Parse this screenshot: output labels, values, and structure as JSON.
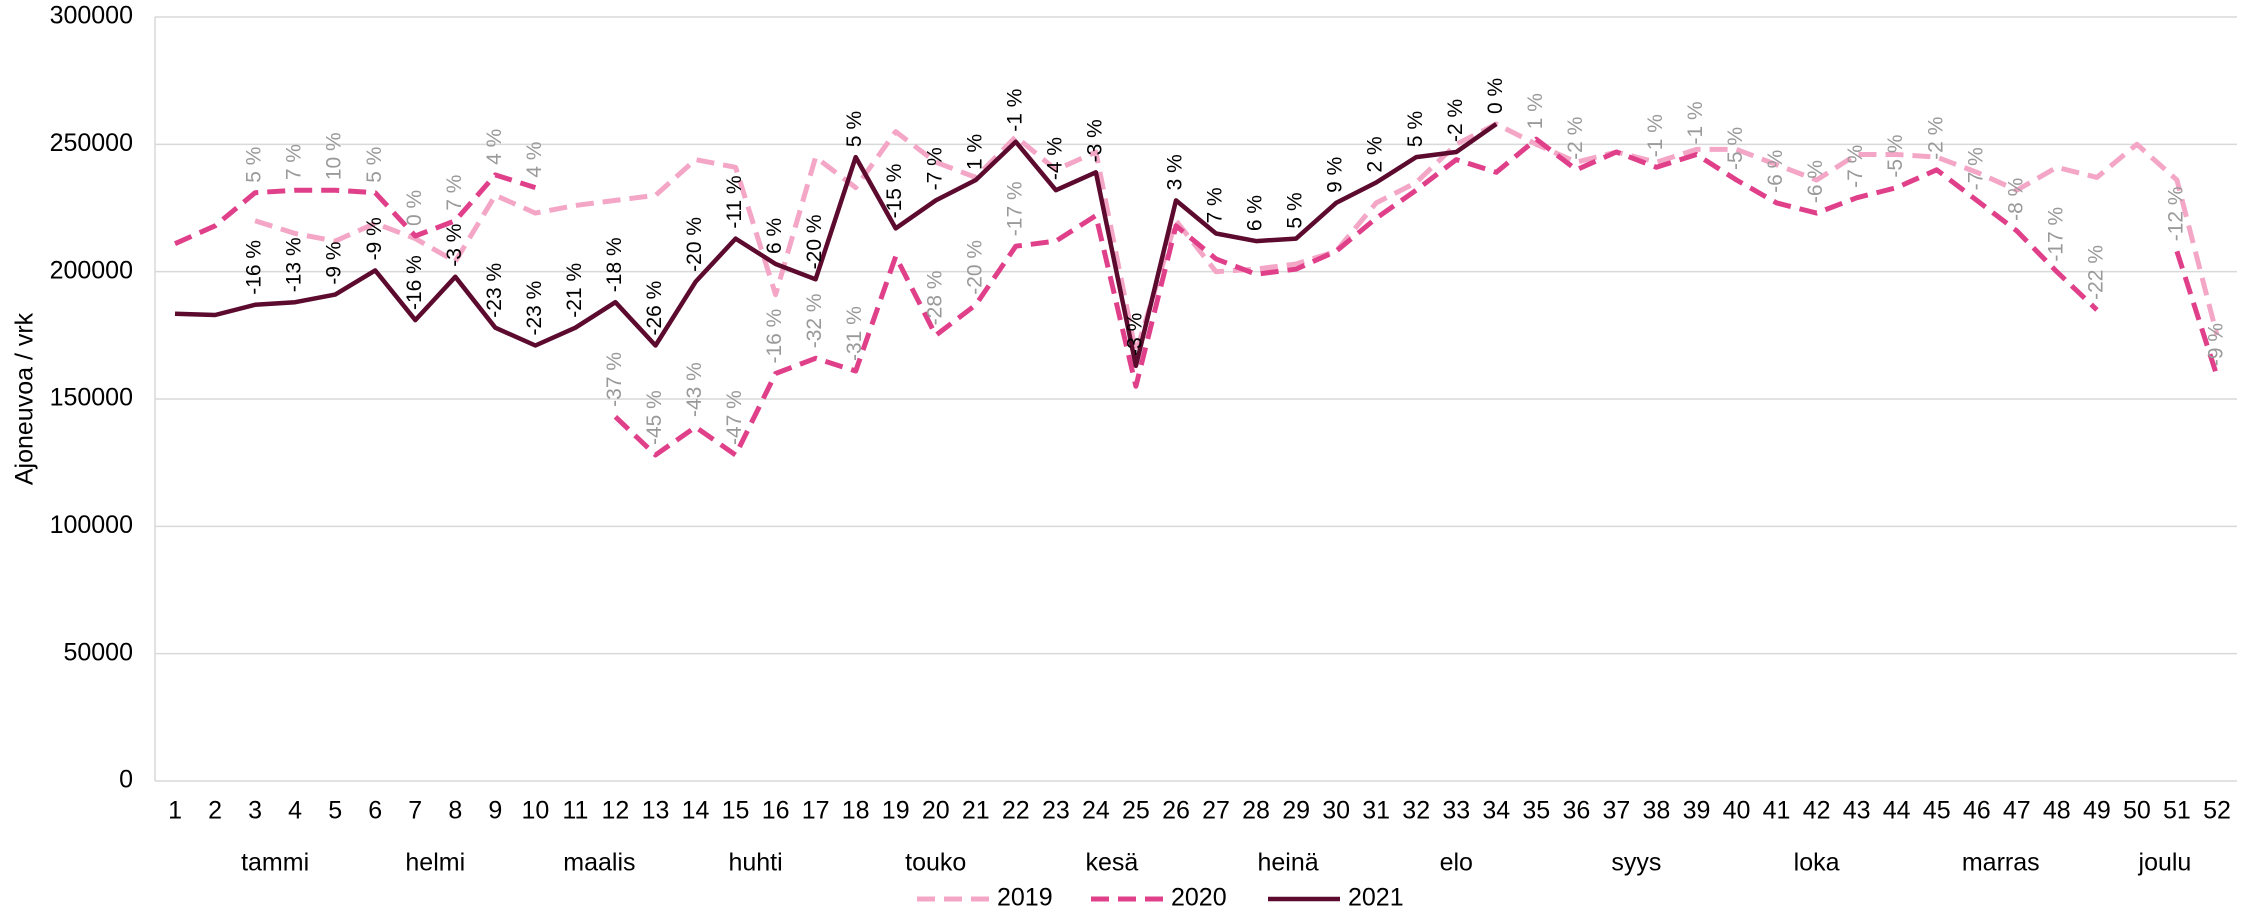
{
  "chart_data": {
    "type": "line",
    "ylabel": "Ajoneuvoa / vrk",
    "categories": [
      "1",
      "2",
      "3",
      "4",
      "5",
      "6",
      "7",
      "8",
      "9",
      "10",
      "11",
      "12",
      "13",
      "14",
      "15",
      "16",
      "17",
      "18",
      "19",
      "20",
      "21",
      "22",
      "23",
      "24",
      "25",
      "26",
      "27",
      "28",
      "29",
      "30",
      "31",
      "32",
      "33",
      "34",
      "35",
      "36",
      "37",
      "38",
      "39",
      "40",
      "41",
      "42",
      "43",
      "44",
      "45",
      "46",
      "47",
      "48",
      "49",
      "50",
      "51",
      "52"
    ],
    "months": [
      "tammi",
      "helmi",
      "maalis",
      "huhti",
      "touko",
      "kesä",
      "heinä",
      "elo",
      "syys",
      "loka",
      "marras",
      "joulu"
    ],
    "ylim": [
      0,
      300000
    ],
    "yticks": [
      0,
      50000,
      100000,
      150000,
      200000,
      250000,
      300000
    ],
    "grid": true,
    "legend": "bottom",
    "series": [
      {
        "name": "2019",
        "color": "#f4a6c6",
        "dash": "dashed",
        "values": [
          null,
          null,
          220000,
          215000,
          212000,
          219000,
          213000,
          204000,
          230000,
          223000,
          226000,
          228000,
          230000,
          244000,
          241000,
          191000,
          245000,
          233000,
          255000,
          243000,
          237000,
          253000,
          240000,
          247000,
          168000,
          220000,
          200000,
          201000,
          203000,
          208000,
          227000,
          235000,
          250000,
          258000,
          250000,
          243000,
          247000,
          243000,
          248000,
          248000,
          242000,
          236000,
          246000,
          246000,
          245000,
          239000,
          232000,
          241000,
          237000,
          250000,
          236000,
          175000
        ]
      },
      {
        "name": "2020",
        "color": "#e0408a",
        "dash": "dashed",
        "label_color": "#9a9a9a",
        "values": [
          211000,
          218000,
          231000,
          232000,
          232000,
          231000,
          214000,
          220000,
          238000,
          233000,
          null,
          143000,
          128000,
          139000,
          128000,
          160000,
          166000,
          161000,
          206000,
          175000,
          187000,
          210000,
          212000,
          222000,
          155000,
          218000,
          205000,
          199000,
          201000,
          208000,
          221000,
          232000,
          244000,
          239000,
          252000,
          240000,
          247000,
          241000,
          246000,
          236000,
          227000,
          223000,
          229000,
          233000,
          240000,
          228000,
          216000,
          200000,
          185000,
          null,
          208000,
          159000
        ],
        "change_labels": [
          null,
          null,
          "5 %",
          "7 %",
          "10 %",
          "5 %",
          "0 %",
          "7 %",
          "4 %",
          "4 %",
          null,
          "-37 %",
          "-45 %",
          "-43 %",
          "-47 %",
          "-16 %",
          "-32 %",
          "-31 %",
          null,
          "-28 %",
          "-20 %",
          "-17 %",
          null,
          null,
          null,
          null,
          null,
          null,
          null,
          null,
          null,
          null,
          null,
          null,
          "1 %",
          "-2 %",
          null,
          "-1 %",
          "-1 %",
          "-5 %",
          "-6 %",
          "-6 %",
          "-7 %",
          "-5 %",
          "-2 %",
          "-7 %",
          "-8 %",
          "-17 %",
          "-22 %",
          null,
          "-12 %",
          "-9 %"
        ]
      },
      {
        "name": "2021",
        "color": "#5c0a2e",
        "dash": "solid",
        "label_color": "#000000",
        "values": [
          183500,
          183000,
          187000,
          188000,
          191000,
          200500,
          181000,
          198000,
          178000,
          171000,
          178000,
          188000,
          171000,
          196000,
          213000,
          203000,
          197000,
          245000,
          217000,
          228000,
          236000,
          251000,
          232000,
          239000,
          163000,
          228000,
          215000,
          212000,
          213000,
          227000,
          235000,
          245000,
          247000,
          258000,
          null,
          null,
          null,
          null,
          null,
          null,
          null,
          null,
          null,
          null,
          null,
          null,
          null,
          null,
          null,
          null,
          null,
          null
        ],
        "change_labels": [
          null,
          null,
          "-16 %",
          "-13 %",
          "-9 %",
          "-9 %",
          "-16 %",
          "-3 %",
          "-23 %",
          "-23 %",
          "-21 %",
          "-18 %",
          "-26 %",
          "-20 %",
          "-11 %",
          "6 %",
          "-20 %",
          "5 %",
          "-15 %",
          "-7 %",
          "1 %",
          "-1 %",
          "-4 %",
          "-3 %",
          "-3 %",
          "3 %",
          "7 %",
          "6 %",
          "5 %",
          "9 %",
          "2 %",
          "5 %",
          "-2 %",
          "0 %",
          null,
          null,
          null,
          null,
          null,
          null,
          null,
          null,
          null,
          null,
          null,
          null,
          null,
          null,
          null,
          null,
          null,
          null
        ]
      }
    ]
  }
}
